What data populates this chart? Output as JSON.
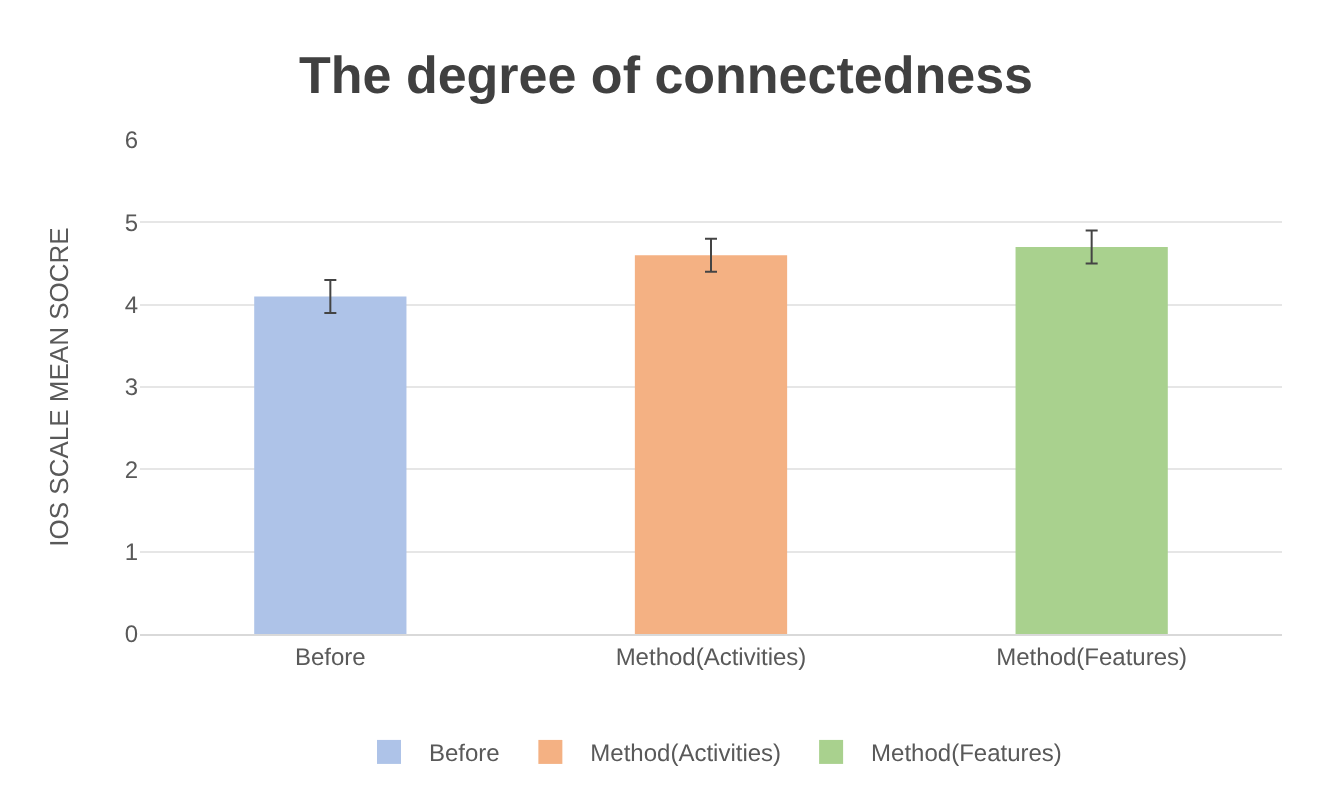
{
  "chart_data": {
    "type": "bar",
    "title": "The degree of connectedness",
    "ylabel": "IOS SCALE MEAN SOCRE",
    "categories": [
      "Before",
      "Method(Activities)",
      "Method(Features)"
    ],
    "series": [
      {
        "name": "Before",
        "color": "#aec3e8",
        "values": [
          4.1,
          null,
          null
        ],
        "errors": [
          0.2,
          null,
          null
        ]
      },
      {
        "name": "Method(Activities)",
        "color": "#f4b183",
        "values": [
          null,
          4.6,
          null
        ],
        "errors": [
          null,
          0.2,
          null
        ]
      },
      {
        "name": "Method(Features)",
        "color": "#a9d18e",
        "values": [
          null,
          null,
          4.7
        ],
        "errors": [
          null,
          null,
          0.2
        ]
      }
    ],
    "ylim": [
      0,
      6
    ],
    "yticks": [
      0,
      1,
      2,
      3,
      4,
      5,
      6
    ],
    "grid": "y",
    "legend": "bottom"
  }
}
